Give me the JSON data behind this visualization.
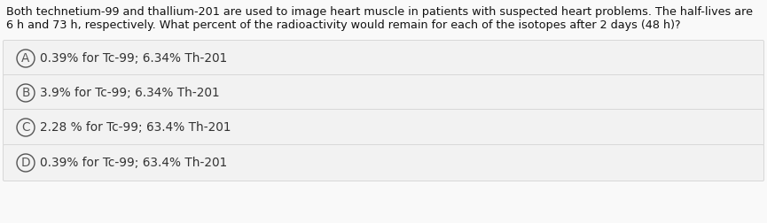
{
  "question_line1": "Both technetium-99 and thallium-201 are used to image heart muscle in patients with suspected heart problems. The half-lives are",
  "question_line2": "6 h and 73 h, respectively. What percent of the radioactivity would remain for each of the isotopes after 2 days (48 h)?",
  "options": [
    {
      "label": "A",
      "text": "0.39% for Tc-99; 6.34% Th-201"
    },
    {
      "label": "B",
      "text": "3.9% for Tc-99; 6.34% Th-201"
    },
    {
      "label": "C",
      "text": "2.28 % for Tc-99; 63.4% Th-201"
    },
    {
      "label": "D",
      "text": "0.39% for Tc-99; 63.4% Th-201"
    }
  ],
  "background_color": "#f9f9f9",
  "option_box_color": "#f2f2f2",
  "option_box_border_color": "#d8d8d8",
  "circle_border_color": "#555555",
  "circle_fill_color": "#f2f2f2",
  "text_color": "#333333",
  "question_text_color": "#111111",
  "font_size_question": 9.2,
  "font_size_option": 9.8,
  "font_size_label": 9.8,
  "fig_width": 8.65,
  "fig_height": 2.52,
  "dpi": 100
}
